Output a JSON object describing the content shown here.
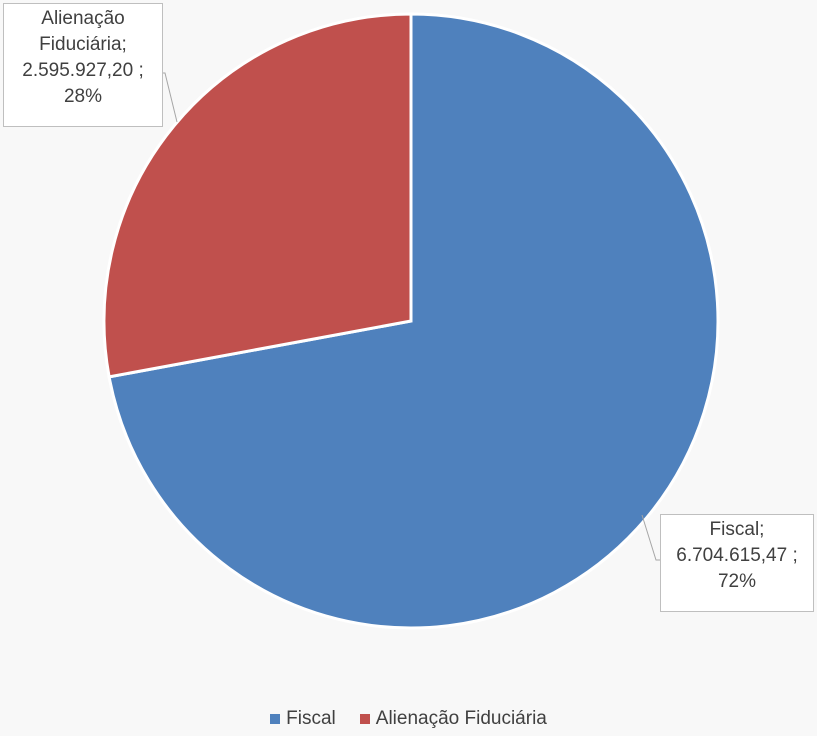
{
  "chart_data": {
    "type": "pie",
    "title": "",
    "slices": [
      {
        "name": "Fiscal",
        "value": 6704615.47,
        "value_label": "6.704.615,47",
        "percent_label": "72%",
        "color": "#4f81bd"
      },
      {
        "name": "Alienação Fiduciária",
        "value": 2595927.2,
        "value_label": "2.595.927,20",
        "percent_label": "28%",
        "color": "#c0504d"
      }
    ],
    "start_angle_deg": 0,
    "direction": "clockwise",
    "legend_position": "bottom"
  },
  "labels": {
    "fiscal": {
      "line1": "Fiscal;",
      "line2": "6.704.615,47 ;",
      "line3": "72%"
    },
    "alienacao": {
      "line1": "Alienação",
      "line2": "Fiduciária;",
      "line3": "2.595.927,20 ;",
      "line4": "28%"
    }
  },
  "legend": {
    "items": [
      {
        "label": "Fiscal",
        "color": "#4f81bd"
      },
      {
        "label": "Alienação Fiduciária",
        "color": "#c0504d"
      }
    ]
  }
}
